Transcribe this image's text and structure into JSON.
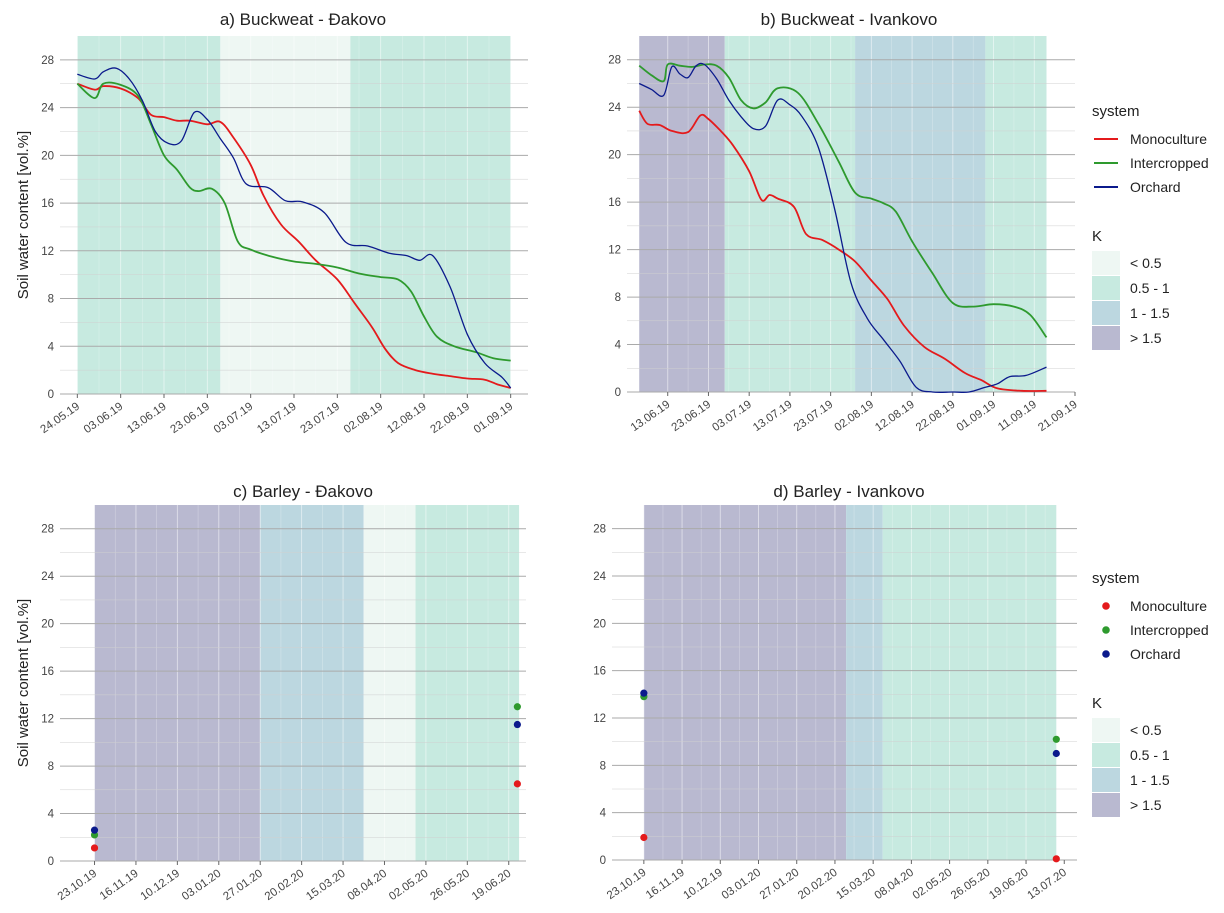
{
  "colors": {
    "Monoculture": "#e41a1c",
    "Intercropped": "#2e9a2e",
    "Orchard": "#0b1a8c",
    "K_bands": {
      "< 0.5": "#eef7f3",
      "0.5 - 1": "#c7eae0",
      "1 - 1.5": "#bcd7e0",
      "> 1.5": "#b9b9d0"
    },
    "gridline": "#aaaaaa"
  },
  "legends": [
    {
      "panel_row": "top",
      "system_title": "system",
      "system_items": [
        "Monoculture",
        "Intercropped",
        "Orchard"
      ],
      "system_symbol": "line",
      "k_title": "K",
      "k_items": [
        "< 0.5",
        "0.5 - 1",
        "1 - 1.5",
        "> 1.5"
      ]
    },
    {
      "panel_row": "bottom",
      "system_title": "system",
      "system_items": [
        "Monoculture",
        "Intercropped",
        "Orchard"
      ],
      "system_symbol": "point",
      "k_title": "K",
      "k_items": [
        "< 0.5",
        "0.5 - 1",
        "1 - 1.5",
        "> 1.5"
      ]
    }
  ],
  "chart_data": [
    {
      "id": "a",
      "type": "line",
      "title": "a) Buckweat - Đakovo",
      "ylabel": "Soil water content [vol.%]",
      "xaxis": "date",
      "xlim": [
        "2019-05-20",
        "2019-09-05"
      ],
      "ylim": [
        0,
        30
      ],
      "yticks": [
        0,
        4,
        8,
        12,
        16,
        20,
        24,
        28
      ],
      "xticks": [
        "2019-05-24",
        "2019-06-03",
        "2019-06-13",
        "2019-06-23",
        "2019-07-03",
        "2019-07-13",
        "2019-07-23",
        "2019-08-02",
        "2019-08-12",
        "2019-08-22",
        "2019-09-01"
      ],
      "xtick_labels": [
        "24.05.19",
        "03.06.19",
        "13.06.19",
        "23.06.19",
        "03.07.19",
        "13.07.19",
        "23.07.19",
        "02.08.19",
        "12.08.19",
        "22.08.19",
        "01.09.19"
      ],
      "k_bands": [
        {
          "start": "2019-05-24",
          "end": "2019-06-26",
          "k": "0.5 - 1"
        },
        {
          "start": "2019-06-26",
          "end": "2019-07-26",
          "k": "< 0.5"
        },
        {
          "start": "2019-07-26",
          "end": "2019-09-01",
          "k": "0.5 - 1"
        }
      ],
      "series": [
        {
          "name": "Monoculture",
          "x": [
            "2019-05-24",
            "2019-05-28",
            "2019-05-30",
            "2019-06-03",
            "2019-06-07",
            "2019-06-10",
            "2019-06-13",
            "2019-06-16",
            "2019-06-19",
            "2019-06-23",
            "2019-06-26",
            "2019-06-29",
            "2019-07-03",
            "2019-07-06",
            "2019-07-10",
            "2019-07-14",
            "2019-07-18",
            "2019-07-23",
            "2019-07-27",
            "2019-07-31",
            "2019-08-03",
            "2019-08-06",
            "2019-08-10",
            "2019-08-14",
            "2019-08-18",
            "2019-08-22",
            "2019-08-26",
            "2019-08-29",
            "2019-09-01"
          ],
          "y": [
            26.0,
            25.5,
            25.8,
            25.6,
            24.8,
            23.4,
            23.2,
            22.9,
            22.9,
            22.6,
            22.8,
            21.5,
            19.2,
            16.6,
            14.2,
            12.8,
            11.2,
            9.6,
            7.6,
            5.6,
            3.8,
            2.6,
            2.0,
            1.7,
            1.5,
            1.3,
            1.2,
            0.8,
            0.5
          ]
        },
        {
          "name": "Intercropped",
          "x": [
            "2019-05-24",
            "2019-05-28",
            "2019-05-30",
            "2019-06-03",
            "2019-06-07",
            "2019-06-10",
            "2019-06-13",
            "2019-06-16",
            "2019-06-19",
            "2019-06-21",
            "2019-06-24",
            "2019-06-27",
            "2019-06-30",
            "2019-07-03",
            "2019-07-08",
            "2019-07-13",
            "2019-07-18",
            "2019-07-23",
            "2019-07-28",
            "2019-08-02",
            "2019-08-06",
            "2019-08-09",
            "2019-08-12",
            "2019-08-15",
            "2019-08-19",
            "2019-08-24",
            "2019-08-28",
            "2019-09-01"
          ],
          "y": [
            26.0,
            24.8,
            26.0,
            25.9,
            25.0,
            22.6,
            20.0,
            18.8,
            17.3,
            17.0,
            17.2,
            16.0,
            12.8,
            12.1,
            11.5,
            11.1,
            10.9,
            10.6,
            10.1,
            9.8,
            9.6,
            8.6,
            6.5,
            4.8,
            4.0,
            3.5,
            3.0,
            2.8
          ]
        },
        {
          "name": "Orchard",
          "x": [
            "2019-05-24",
            "2019-05-28",
            "2019-05-30",
            "2019-06-02",
            "2019-06-05",
            "2019-06-08",
            "2019-06-11",
            "2019-06-14",
            "2019-06-17",
            "2019-06-20",
            "2019-06-23",
            "2019-06-26",
            "2019-06-29",
            "2019-07-02",
            "2019-07-07",
            "2019-07-11",
            "2019-07-15",
            "2019-07-20",
            "2019-07-25",
            "2019-07-30",
            "2019-08-04",
            "2019-08-08",
            "2019-08-11",
            "2019-08-14",
            "2019-08-18",
            "2019-08-22",
            "2019-08-26",
            "2019-08-30",
            "2019-09-01"
          ],
          "y": [
            26.8,
            26.4,
            27.0,
            27.3,
            26.4,
            24.6,
            22.0,
            21.0,
            21.2,
            23.6,
            23.0,
            21.4,
            19.8,
            17.6,
            17.3,
            16.2,
            16.1,
            15.2,
            12.7,
            12.4,
            11.8,
            11.6,
            11.2,
            11.6,
            9.0,
            5.0,
            2.6,
            1.4,
            0.5
          ]
        }
      ]
    },
    {
      "id": "b",
      "type": "line",
      "title": "b) Buckweat - Ivankovo",
      "ylabel": "",
      "xaxis": "date",
      "xlim": [
        "2019-06-03",
        "2019-09-21"
      ],
      "ylim": [
        0,
        30
      ],
      "yticks": [
        0,
        4,
        8,
        12,
        16,
        20,
        24,
        28
      ],
      "xticks": [
        "2019-06-13",
        "2019-06-23",
        "2019-07-03",
        "2019-07-13",
        "2019-07-23",
        "2019-08-02",
        "2019-08-12",
        "2019-08-22",
        "2019-09-01",
        "2019-09-11",
        "2019-09-21"
      ],
      "xtick_labels": [
        "13.06.19",
        "23.06.19",
        "03.07.19",
        "13.07.19",
        "23.07.19",
        "02.08.19",
        "12.08.19",
        "22.08.19",
        "01.09.19",
        "11.09.19",
        "21.09.19"
      ],
      "k_bands": [
        {
          "start": "2019-06-06",
          "end": "2019-06-27",
          "k": "> 1.5"
        },
        {
          "start": "2019-06-27",
          "end": "2019-07-29",
          "k": "0.5 - 1"
        },
        {
          "start": "2019-07-29",
          "end": "2019-08-30",
          "k": "1 - 1.5"
        },
        {
          "start": "2019-08-30",
          "end": "2019-09-14",
          "k": "0.5 - 1"
        }
      ],
      "series": [
        {
          "name": "Monoculture",
          "x": [
            "2019-06-06",
            "2019-06-08",
            "2019-06-11",
            "2019-06-14",
            "2019-06-18",
            "2019-06-21",
            "2019-06-23",
            "2019-06-26",
            "2019-06-29",
            "2019-07-03",
            "2019-07-06",
            "2019-07-08",
            "2019-07-10",
            "2019-07-14",
            "2019-07-17",
            "2019-07-21",
            "2019-07-25",
            "2019-07-29",
            "2019-08-02",
            "2019-08-06",
            "2019-08-10",
            "2019-08-15",
            "2019-08-20",
            "2019-08-25",
            "2019-08-29",
            "2019-09-02",
            "2019-09-08",
            "2019-09-14"
          ],
          "y": [
            23.7,
            22.6,
            22.5,
            22.0,
            21.9,
            23.3,
            23.0,
            22.0,
            20.8,
            18.6,
            16.2,
            16.6,
            16.3,
            15.6,
            13.3,
            12.8,
            12.0,
            11.0,
            9.4,
            7.8,
            5.6,
            3.8,
            2.8,
            1.6,
            1.0,
            0.3,
            0.1,
            0.1
          ]
        },
        {
          "name": "Intercropped",
          "x": [
            "2019-06-06",
            "2019-06-09",
            "2019-06-12",
            "2019-06-13",
            "2019-06-16",
            "2019-06-19",
            "2019-06-22",
            "2019-06-25",
            "2019-06-28",
            "2019-07-01",
            "2019-07-04",
            "2019-07-07",
            "2019-07-10",
            "2019-07-15",
            "2019-07-20",
            "2019-07-25",
            "2019-07-29",
            "2019-08-02",
            "2019-08-05",
            "2019-08-08",
            "2019-08-12",
            "2019-08-17",
            "2019-08-22",
            "2019-08-27",
            "2019-09-01",
            "2019-09-06",
            "2019-09-10",
            "2019-09-14"
          ],
          "y": [
            27.5,
            26.7,
            26.2,
            27.6,
            27.5,
            27.4,
            27.6,
            27.5,
            26.5,
            24.6,
            23.9,
            24.4,
            25.6,
            25.2,
            22.6,
            19.4,
            16.8,
            16.3,
            15.9,
            15.2,
            12.7,
            10.0,
            7.5,
            7.2,
            7.4,
            7.2,
            6.5,
            4.6
          ]
        },
        {
          "name": "Orchard",
          "x": [
            "2019-06-06",
            "2019-06-09",
            "2019-06-12",
            "2019-06-14",
            "2019-06-16",
            "2019-06-18",
            "2019-06-20",
            "2019-06-22",
            "2019-06-25",
            "2019-06-28",
            "2019-07-01",
            "2019-07-04",
            "2019-07-07",
            "2019-07-10",
            "2019-07-13",
            "2019-07-16",
            "2019-07-20",
            "2019-07-24",
            "2019-07-28",
            "2019-08-01",
            "2019-08-05",
            "2019-08-09",
            "2019-08-13",
            "2019-08-17",
            "2019-08-22",
            "2019-08-26",
            "2019-08-30",
            "2019-09-02",
            "2019-09-05",
            "2019-09-09",
            "2019-09-14"
          ],
          "y": [
            26.0,
            25.5,
            25.0,
            27.4,
            26.8,
            26.5,
            27.5,
            27.6,
            26.4,
            24.6,
            23.2,
            22.2,
            22.4,
            24.6,
            24.2,
            23.2,
            20.6,
            15.4,
            9.2,
            6.2,
            4.4,
            2.6,
            0.4,
            0.0,
            0.0,
            0.0,
            0.4,
            0.7,
            1.3,
            1.4,
            2.1
          ]
        }
      ]
    },
    {
      "id": "c",
      "type": "scatter",
      "title": "c) Barley - Đakovo",
      "ylabel": "Soil water content [vol.%]",
      "xaxis": "date",
      "xlim": [
        "2019-10-03",
        "2020-06-29"
      ],
      "ylim": [
        0,
        30
      ],
      "yticks": [
        0,
        4,
        8,
        12,
        16,
        20,
        24,
        28
      ],
      "xticks": [
        "2019-10-23",
        "2019-11-16",
        "2019-12-10",
        "2020-01-03",
        "2020-01-27",
        "2020-02-20",
        "2020-03-15",
        "2020-04-08",
        "2020-05-02",
        "2020-05-26",
        "2020-06-19"
      ],
      "xtick_labels": [
        "23.10.19",
        "16.11.19",
        "10.12.19",
        "03.01.20",
        "27.01.20",
        "20.02.20",
        "15.03.20",
        "08.04.20",
        "02.05.20",
        "26.05.20",
        "19.06.20"
      ],
      "k_bands": [
        {
          "start": "2019-10-23",
          "end": "2020-01-27",
          "k": "> 1.5"
        },
        {
          "start": "2020-01-27",
          "end": "2020-03-27",
          "k": "1 - 1.5"
        },
        {
          "start": "2020-03-27",
          "end": "2020-04-26",
          "k": "< 0.5"
        },
        {
          "start": "2020-04-26",
          "end": "2020-06-25",
          "k": "0.5 - 1"
        }
      ],
      "series": [
        {
          "name": "Monoculture",
          "x": [
            "2019-10-23",
            "2020-06-24"
          ],
          "y": [
            1.1,
            6.5
          ]
        },
        {
          "name": "Intercropped",
          "x": [
            "2019-10-23",
            "2020-06-24"
          ],
          "y": [
            2.2,
            13.0
          ]
        },
        {
          "name": "Orchard",
          "x": [
            "2019-10-23",
            "2020-06-24"
          ],
          "y": [
            2.6,
            11.5
          ]
        }
      ]
    },
    {
      "id": "d",
      "type": "scatter",
      "title": "d) Barley - Ivankovo",
      "ylabel": "",
      "xaxis": "date",
      "xlim": [
        "2019-10-03",
        "2020-07-21"
      ],
      "ylim": [
        0,
        30
      ],
      "yticks": [
        0,
        4,
        8,
        12,
        16,
        20,
        24,
        28
      ],
      "xticks": [
        "2019-10-23",
        "2019-11-16",
        "2019-12-10",
        "2020-01-03",
        "2020-01-27",
        "2020-02-20",
        "2020-03-15",
        "2020-04-08",
        "2020-05-02",
        "2020-05-26",
        "2020-06-19",
        "2020-07-13"
      ],
      "xtick_labels": [
        "23.10.19",
        "16.11.19",
        "10.12.19",
        "03.01.20",
        "27.01.20",
        "20.02.20",
        "15.03.20",
        "08.04.20",
        "02.05.20",
        "26.05.20",
        "19.06.20",
        "13.07.20"
      ],
      "k_bands": [
        {
          "start": "2019-10-23",
          "end": "2020-02-27",
          "k": "> 1.5"
        },
        {
          "start": "2020-02-27",
          "end": "2020-03-21",
          "k": "1 - 1.5"
        },
        {
          "start": "2020-03-21",
          "end": "2020-07-08",
          "k": "0.5 - 1"
        }
      ],
      "series": [
        {
          "name": "Monoculture",
          "x": [
            "2019-10-23",
            "2020-07-08"
          ],
          "y": [
            1.9,
            0.1
          ]
        },
        {
          "name": "Intercropped",
          "x": [
            "2019-10-23",
            "2020-07-08"
          ],
          "y": [
            13.8,
            10.2
          ]
        },
        {
          "name": "Orchard",
          "x": [
            "2019-10-23",
            "2020-07-08"
          ],
          "y": [
            14.1,
            9.0
          ]
        }
      ]
    }
  ]
}
